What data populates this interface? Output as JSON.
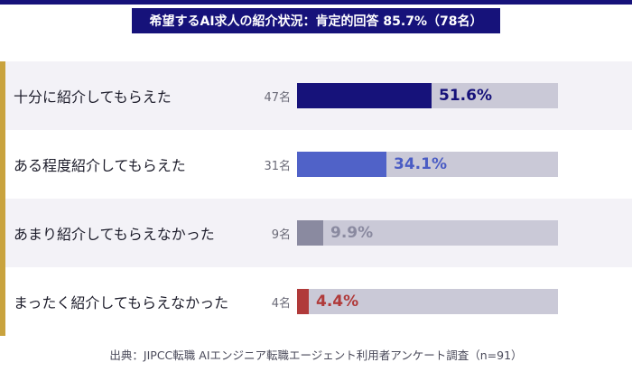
{
  "title": "希望するAI求人の紹介状況：肯定的回答 85.7%（78名）",
  "source": "出典：JIPCC転職 AIエンジニア転職エージェント利用者アンケート調査（n=91）",
  "colors": {
    "navy": "#16127a",
    "accent": "#c9a33e",
    "track": "#cac9d7"
  },
  "chart_data": {
    "type": "bar",
    "orientation": "horizontal",
    "title": "希望するAI求人の紹介状況：肯定的回答 85.7%（78名）",
    "xlim": [
      0,
      100
    ],
    "unit": "%",
    "categories": [
      "十分に紹介してもらえた",
      "ある程度紹介してもらえた",
      "あまり紹介してもらえなかった",
      "まったく紹介してもらえなかった"
    ],
    "values": [
      51.6,
      34.1,
      9.9,
      4.4
    ],
    "value_labels": [
      "51.6%",
      "34.1%",
      "9.9%",
      "4.4%"
    ],
    "counts": [
      "47名",
      "31名",
      "9名",
      "4名"
    ],
    "bar_colors": [
      "#16127a",
      "#5062c8",
      "#8a8aa0",
      "#b03a3a"
    ],
    "label_colors": [
      "#16127a",
      "#4a5cc4",
      "#8a8aa0",
      "#b03a3a"
    ]
  }
}
